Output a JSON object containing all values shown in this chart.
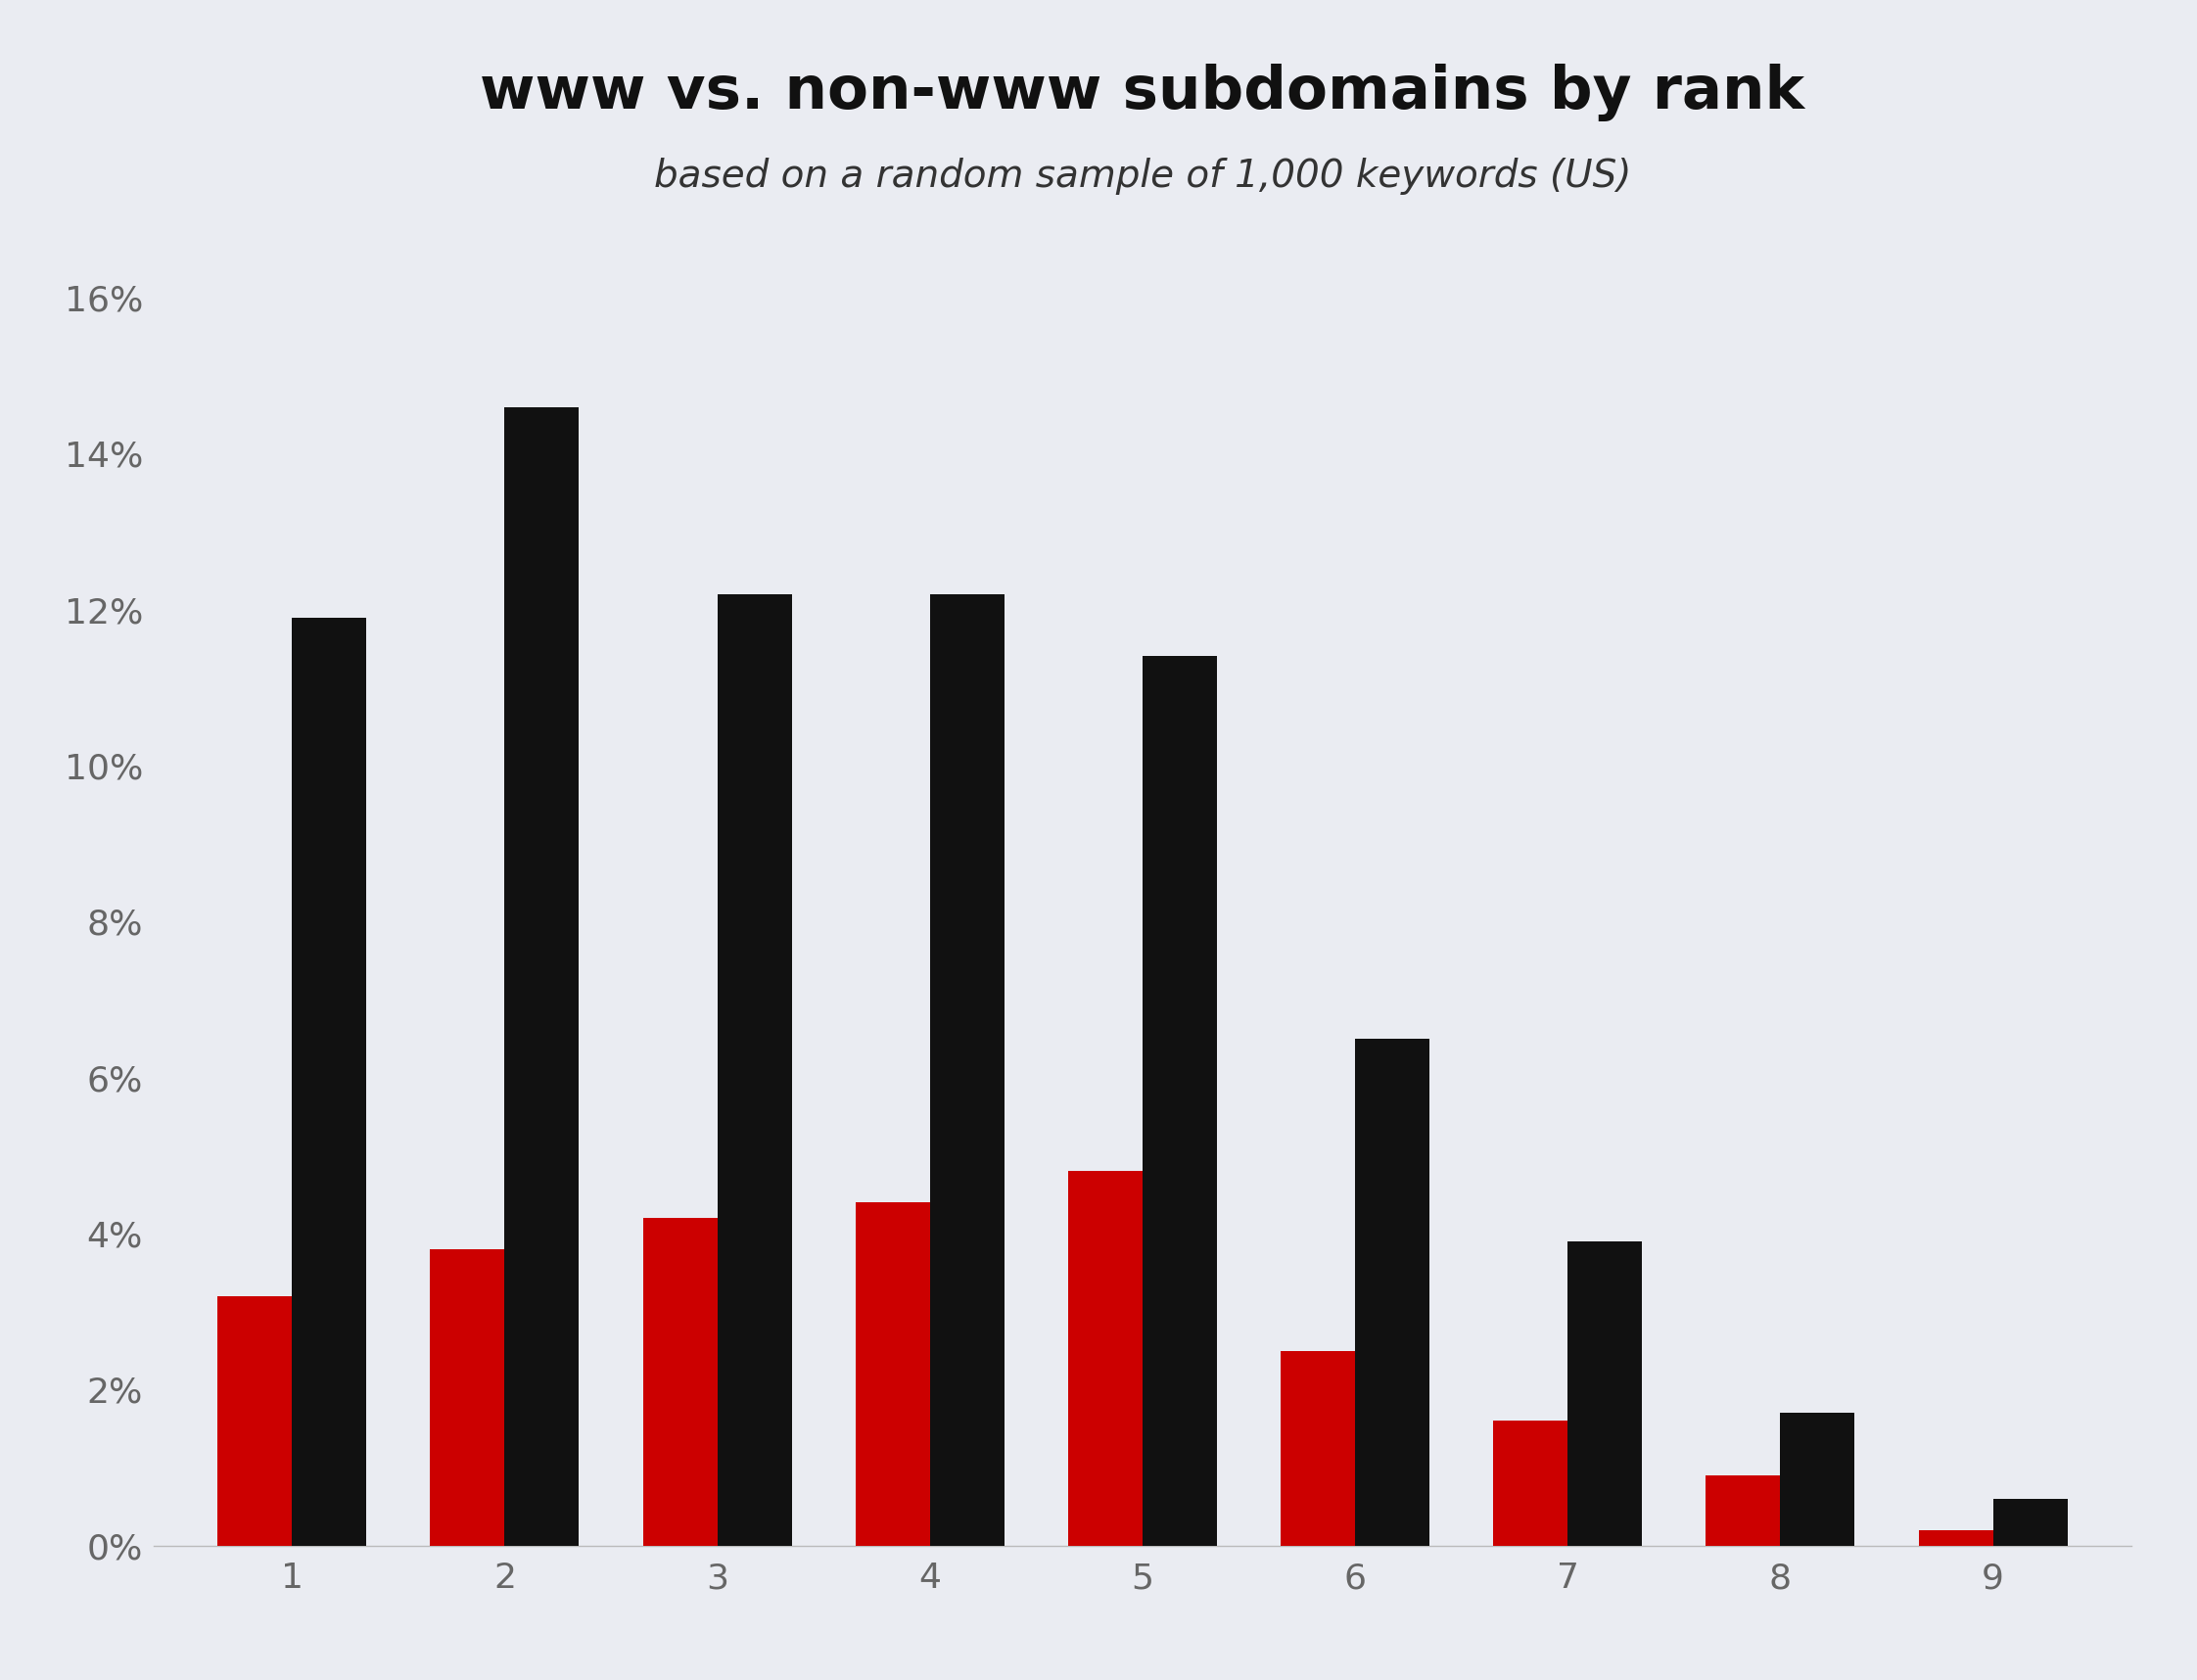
{
  "title": "www vs. non-www subdomains by rank",
  "subtitle": "based on a random sample of 1,000 keywords (US)",
  "categories": [
    1,
    2,
    3,
    4,
    5,
    6,
    7,
    8,
    9
  ],
  "www_values": [
    0.032,
    0.038,
    0.042,
    0.044,
    0.048,
    0.025,
    0.016,
    0.009,
    0.002
  ],
  "nonwww_values": [
    0.119,
    0.146,
    0.122,
    0.122,
    0.114,
    0.065,
    0.039,
    0.017,
    0.006
  ],
  "www_color": "#cc0000",
  "nonwww_color": "#111111",
  "background_color": "#eaecf2",
  "ylim": [
    0,
    0.168
  ],
  "yticks": [
    0,
    0.02,
    0.04,
    0.06,
    0.08,
    0.1,
    0.12,
    0.14,
    0.16
  ],
  "ytick_labels": [
    "0%",
    "2%",
    "4%",
    "6%",
    "8%",
    "10%",
    "12%",
    "14%",
    "16%"
  ],
  "title_fontsize": 44,
  "subtitle_fontsize": 28,
  "tick_fontsize": 26,
  "bar_width": 0.35,
  "axis_text_color": "#666666"
}
